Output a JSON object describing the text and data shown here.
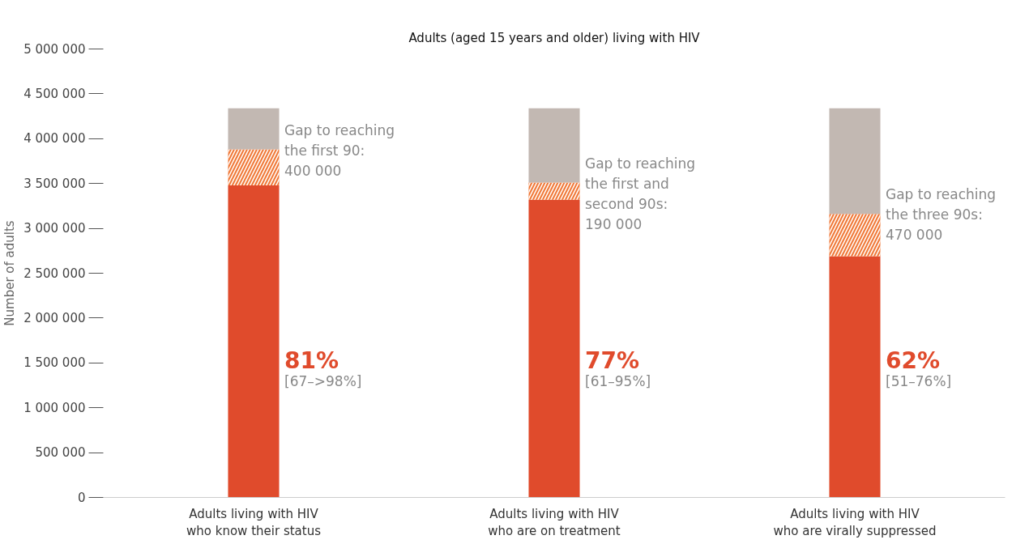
{
  "chart_data": {
    "type": "bar",
    "stacked": true,
    "title": "Adults (aged 15 years and older) living with HIV",
    "ylabel": "Number of adults",
    "categories": [
      "Adults living with HIV\nwho know their status",
      "Adults living with HIV\nwho are on treatment",
      "Adults living with HIV\nwho are virally suppressed"
    ],
    "series": [
      {
        "color": "#e04b2c",
        "values": [
          3480000,
          3320000,
          2690000
        ]
      },
      {
        "color": "#f07a3a",
        "values": [
          400000,
          190000,
          470000
        ]
      },
      {
        "color": "#c2b8b2",
        "values": [
          460000,
          830000,
          1180000
        ]
      }
    ],
    "ylim": [
      0,
      5000000
    ],
    "yticks": [
      {
        "value": 0,
        "label": "0"
      },
      {
        "value": 500000,
        "label": "500 000"
      },
      {
        "value": 1000000,
        "label": "1 000 000"
      },
      {
        "value": 1500000,
        "label": "1 500 000"
      },
      {
        "value": 2000000,
        "label": "2 000 000"
      },
      {
        "value": 2500000,
        "label": "2 500 000"
      },
      {
        "value": 3000000,
        "label": "3 000 000"
      },
      {
        "value": 3500000,
        "label": "3 500 000"
      },
      {
        "value": 4000000,
        "label": "4 000 000"
      },
      {
        "value": 4500000,
        "label": "4 500 000"
      },
      {
        "value": 5000000,
        "label": "5 000 000"
      }
    ],
    "annotations": [
      "Gap to reaching\nthe first 90:\n400 000",
      "81%",
      "[67–>98%]",
      "Gap to reaching\nthe first and\nsecond 90s:\n190 000",
      "77%",
      "[61–95%]",
      "Gap to reaching\nthe three 90s:\n470 000",
      "62%",
      "[51–76%]"
    ],
    "grid": false
  }
}
